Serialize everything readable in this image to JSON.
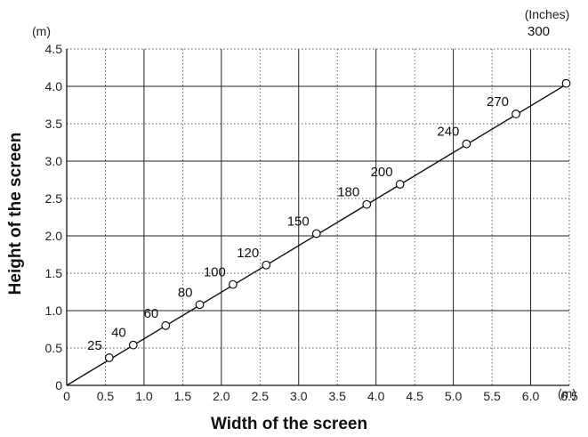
{
  "chart_data": {
    "type": "line",
    "title": "",
    "xlabel": "Width of the screen",
    "ylabel": "Height of the screen",
    "x_unit": "(m)",
    "y_unit": "(m)",
    "series_label_unit": "(Inches)",
    "xlim": [
      0,
      6.5
    ],
    "ylim": [
      0,
      4.5
    ],
    "x_ticks": [
      "0",
      "0.5",
      "1.0",
      "1.5",
      "2.0",
      "2.5",
      "3.0",
      "3.5",
      "4.0",
      "4.5",
      "5.0",
      "5.5",
      "6.0",
      "6.5"
    ],
    "y_ticks": [
      "0",
      "0.5",
      "1.0",
      "1.5",
      "2.0",
      "2.5",
      "3.0",
      "3.5",
      "4.0",
      "4.5"
    ],
    "grid": true,
    "line": {
      "from": [
        0,
        0
      ],
      "to": [
        6.5,
        4.05
      ]
    },
    "points": [
      {
        "label": "25",
        "x": 0.55,
        "y": 0.37
      },
      {
        "label": "40",
        "x": 0.86,
        "y": 0.54
      },
      {
        "label": "60",
        "x": 1.28,
        "y": 0.8
      },
      {
        "label": "80",
        "x": 1.72,
        "y": 1.08
      },
      {
        "label": "100",
        "x": 2.15,
        "y": 1.35
      },
      {
        "label": "120",
        "x": 2.58,
        "y": 1.61
      },
      {
        "label": "150",
        "x": 3.23,
        "y": 2.03
      },
      {
        "label": "180",
        "x": 3.88,
        "y": 2.42
      },
      {
        "label": "200",
        "x": 4.31,
        "y": 2.69
      },
      {
        "label": "240",
        "x": 5.17,
        "y": 3.23
      },
      {
        "label": "270",
        "x": 5.81,
        "y": 3.63
      },
      {
        "label": "300",
        "x": 6.46,
        "y": 4.04
      }
    ]
  }
}
